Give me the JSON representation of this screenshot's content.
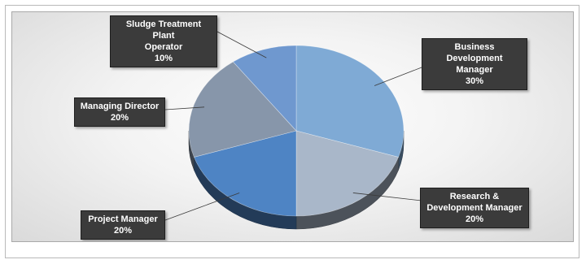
{
  "chart_data": {
    "type": "pie",
    "title": "",
    "legend": "none",
    "slices": [
      {
        "label": "Business Development Manager",
        "value": 30,
        "value_label": "30%",
        "color": "#7faad5"
      },
      {
        "label": "Research & Development Manager",
        "value": 20,
        "value_label": "20%",
        "color": "#a9b7c9"
      },
      {
        "label": "Project Manager",
        "value": 20,
        "value_label": "20%",
        "color": "#4e84c4"
      },
      {
        "label": "Managing Director",
        "value": 20,
        "value_label": "20%",
        "color": "#8796aa"
      },
      {
        "label": "Sludge Treatment Plant Operator",
        "value": 10,
        "value_label": "10%",
        "color": "#6f98cf"
      }
    ]
  },
  "callouts": [
    {
      "lines": [
        "Business Development",
        "Manager"
      ],
      "value": "30%"
    },
    {
      "lines": [
        "Research &",
        "Development Manager"
      ],
      "value": "20%"
    },
    {
      "lines": [
        "Project Manager"
      ],
      "value": "20%"
    },
    {
      "lines": [
        "Managing Director"
      ],
      "value": "20%"
    },
    {
      "lines": [
        "Sludge Treatment Plant",
        "Operator"
      ],
      "value": "10%"
    }
  ]
}
